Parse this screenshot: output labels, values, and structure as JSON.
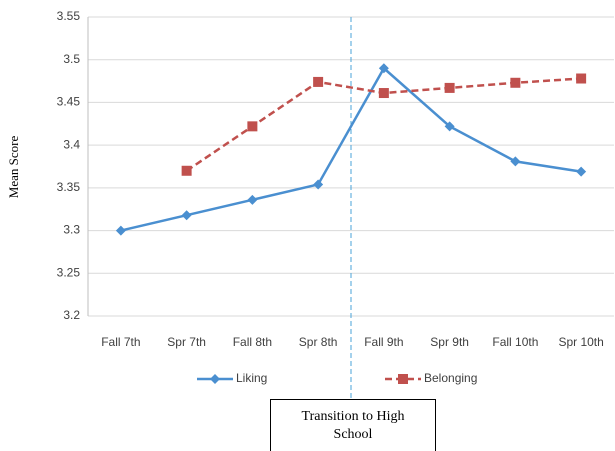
{
  "chart_data": {
    "type": "line",
    "y_label": "Mean Score",
    "annotation": "Transition to High School",
    "categories": [
      "Fall 7th",
      "Spr 7th",
      "Fall 8th",
      "Spr 8th",
      "Fall 9th",
      "Spr 9th",
      "Fall 10th",
      "Spr 10th"
    ],
    "series": [
      {
        "name": "Liking",
        "color": "#4a8fd0",
        "marker": "diamond",
        "dashed": false,
        "values": [
          3.3,
          3.318,
          3.336,
          3.354,
          3.49,
          3.422,
          3.381,
          3.369
        ]
      },
      {
        "name": "Belonging",
        "color": "#c0504d",
        "marker": "square",
        "dashed": true,
        "values": [
          null,
          3.37,
          3.422,
          3.474,
          3.461,
          3.467,
          3.473,
          3.478
        ]
      }
    ],
    "ylim": [
      3.2,
      3.55
    ],
    "yticks": [
      3.2,
      3.25,
      3.3,
      3.35,
      3.4,
      3.45,
      3.5,
      3.55
    ],
    "grid": true
  }
}
